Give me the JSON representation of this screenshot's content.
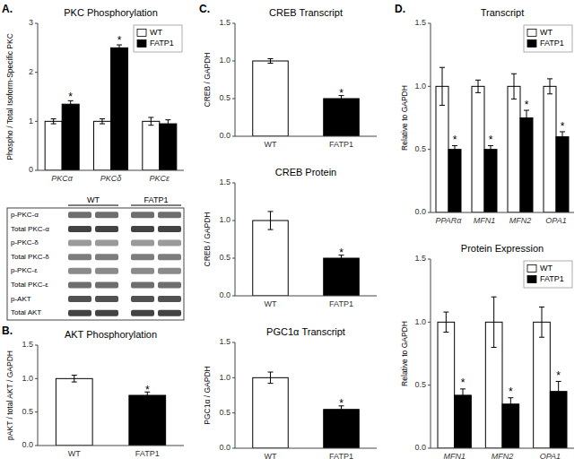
{
  "chart_data": [
    {
      "type": "bar",
      "title": "PKC Phosphorylation",
      "ylabel": "Phospho / Total Isoform-Specific PKC",
      "annotations": [
        "A."
      ],
      "categories": [
        "PKCα",
        "PKCδ",
        "PKCε"
      ],
      "series": [
        {
          "name": "WT",
          "color": "white",
          "values": [
            1.0,
            1.0,
            1.0
          ],
          "error": [
            0.05,
            0.05,
            0.08
          ]
        },
        {
          "name": "FATP1",
          "color": "black",
          "values": [
            1.35,
            2.5,
            0.95
          ],
          "error": [
            0.07,
            0.06,
            0.08
          ],
          "annotations": [
            "*",
            "*",
            null
          ]
        }
      ],
      "ylim": [
        0,
        3
      ],
      "yticks": [
        0,
        1,
        2,
        3
      ],
      "grid": false,
      "legend": "upper right"
    },
    {
      "type": "blot",
      "categories": [
        "p-PKC-α",
        "Total PKC-α",
        "p-PKC-δ",
        "Total PKC-δ",
        "p-PKC-ε",
        "Total PKC-ε",
        "p-AKT",
        "Total AKT"
      ],
      "series": [
        {
          "name": "WT"
        },
        {
          "name": "FATP1"
        }
      ],
      "colors": [
        "#555555",
        "#222222",
        "#888888",
        "#666666",
        "#777777",
        "#555555",
        "#333333",
        "#222222"
      ]
    },
    {
      "type": "bar",
      "title": "AKT Phosphorylation",
      "ylabel": "pAKT / total AKT / GAPDH",
      "annotations": [
        "B."
      ],
      "categories": [
        "WT",
        "FATP1"
      ],
      "series": [
        {
          "values": [
            1.0,
            0.75
          ],
          "error": [
            0.05,
            0.05
          ],
          "colors": [
            "white",
            "black"
          ],
          "annotations": [
            null,
            "*"
          ]
        }
      ],
      "ylim": [
        0,
        1.5
      ],
      "yticks": [
        {
          "value": 0,
          "label": "0.0"
        },
        0.5,
        {
          "value": 1,
          "label": "1.0"
        },
        1.5
      ],
      "grid": false
    },
    {
      "type": "bar",
      "title": "CREB Transcript",
      "ylabel": "CREB / GAPDH",
      "annotations": [
        "C."
      ],
      "categories": [
        "WT",
        "FATP1"
      ],
      "series": [
        {
          "values": [
            1.0,
            0.5
          ],
          "error": [
            0.03,
            0.04
          ],
          "colors": [
            "white",
            "black"
          ],
          "annotations": [
            null,
            "*"
          ]
        }
      ],
      "ylim": [
        0,
        1.5
      ],
      "yticks": [
        {
          "value": 0,
          "label": "0.0"
        },
        0.5,
        {
          "value": 1,
          "label": "1.0"
        },
        1.5
      ],
      "grid": false
    },
    {
      "type": "bar",
      "title": "CREB Protein",
      "ylabel": "CREB / GAPDH",
      "categories": [
        "WT",
        "FATP1"
      ],
      "series": [
        {
          "values": [
            1.0,
            0.5
          ],
          "error": [
            0.12,
            0.04
          ],
          "colors": [
            "white",
            "black"
          ],
          "annotations": [
            null,
            "*"
          ]
        }
      ],
      "ylim": [
        0,
        1.5
      ],
      "yticks": [
        {
          "value": 0,
          "label": "0.0"
        },
        0.5,
        {
          "value": 1,
          "label": "1.0"
        },
        1.5
      ],
      "grid": false
    },
    {
      "type": "bar",
      "title": "PGC1α Transcript",
      "ylabel": "PGC1α / GAPDH",
      "categories": [
        "WT",
        "FATP1"
      ],
      "series": [
        {
          "values": [
            1.0,
            0.55
          ],
          "error": [
            0.08,
            0.05
          ],
          "colors": [
            "white",
            "black"
          ],
          "annotations": [
            null,
            "*"
          ]
        }
      ],
      "ylim": [
        0,
        1.5
      ],
      "yticks": [
        {
          "value": 0,
          "label": "0.0"
        },
        0.5,
        {
          "value": 1,
          "label": "1.0"
        },
        1.5
      ],
      "grid": false
    },
    {
      "type": "bar",
      "title": "Transcript",
      "ylabel": "Relative to GAPDH",
      "annotations": [
        "D."
      ],
      "categories": [
        "PPARα",
        "MFN1",
        "MFN2",
        "OPA1"
      ],
      "series": [
        {
          "name": "WT",
          "color": "white",
          "values": [
            1.0,
            1.0,
            1.0,
            1.0
          ],
          "error": [
            0.15,
            0.05,
            0.1,
            0.06
          ]
        },
        {
          "name": "FATP1",
          "color": "black",
          "values": [
            0.5,
            0.5,
            0.75,
            0.6
          ],
          "error": [
            0.03,
            0.03,
            0.06,
            0.04
          ],
          "annotations": [
            "*",
            "*",
            "*",
            "*"
          ]
        }
      ],
      "ylim": [
        0,
        1.5
      ],
      "yticks": [
        {
          "value": 0,
          "label": "0.0"
        },
        0.5,
        {
          "value": 1,
          "label": "1.0"
        },
        1.5
      ],
      "grid": false,
      "legend": "upper right"
    },
    {
      "type": "bar",
      "title": "Protein Expression",
      "ylabel": "Relative to GAPDH",
      "categories": [
        "MFN1",
        "MFN2",
        "OPA1"
      ],
      "series": [
        {
          "name": "WT",
          "color": "white",
          "values": [
            1.0,
            1.0,
            1.0
          ],
          "error": [
            0.08,
            0.2,
            0.12
          ]
        },
        {
          "name": "FATP1",
          "color": "black",
          "values": [
            0.42,
            0.35,
            0.45
          ],
          "error": [
            0.05,
            0.05,
            0.08
          ],
          "annotations": [
            "*",
            "*",
            "*"
          ]
        }
      ],
      "ylim": [
        0,
        1.5
      ],
      "yticks": [
        {
          "value": 0,
          "label": "0.0"
        },
        0.5,
        {
          "value": 1,
          "label": "1.0"
        },
        1.5
      ],
      "grid": false,
      "legend": "upper right"
    }
  ]
}
